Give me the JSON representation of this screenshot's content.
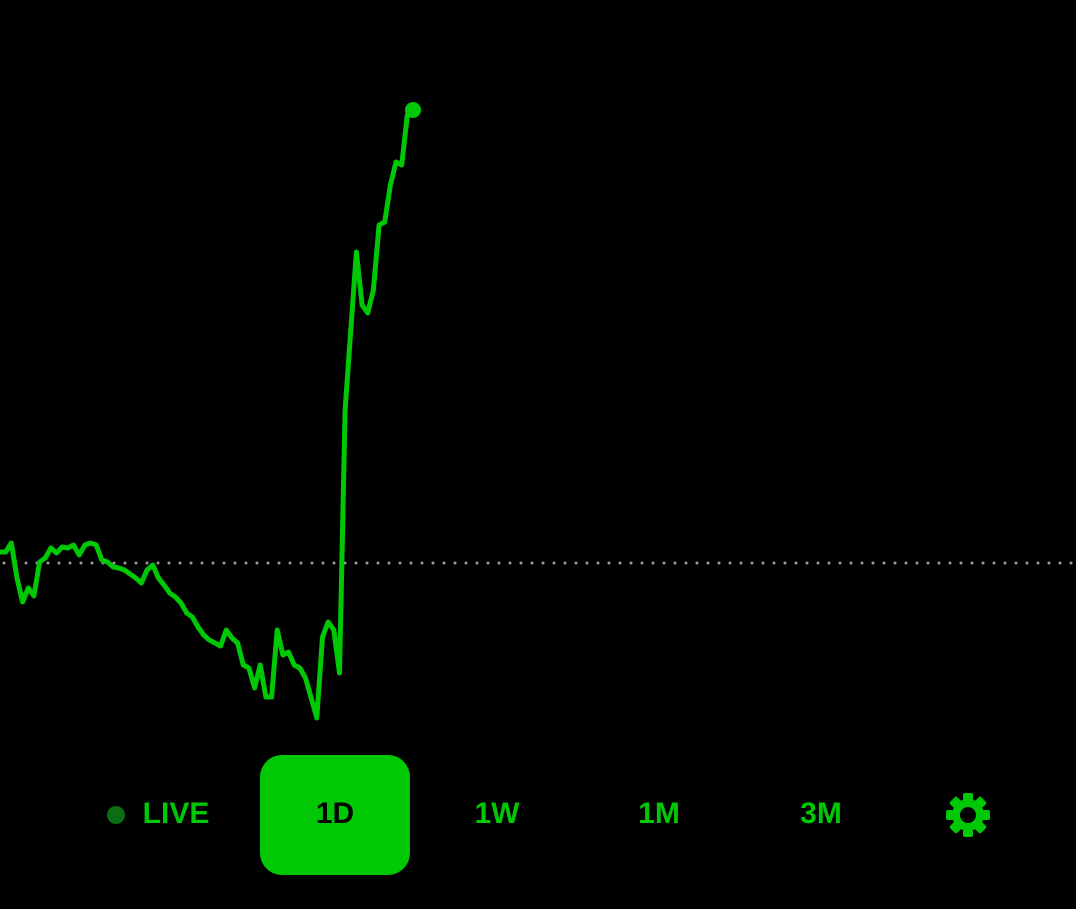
{
  "chart_data": {
    "type": "line",
    "color": "#00c805",
    "reference_line": 100,
    "ylim": [
      80,
      150
    ],
    "values": [
      101.1,
      101.1,
      102.0,
      98.5,
      96.1,
      97.5,
      96.7,
      100.1,
      100.5,
      101.5,
      101.0,
      101.6,
      101.5,
      101.8,
      100.8,
      101.8,
      102.0,
      101.8,
      100.3,
      100.1,
      99.6,
      99.5,
      99.3,
      98.9,
      98.5,
      98.0,
      99.3,
      99.8,
      98.5,
      97.8,
      97.0,
      96.6,
      96.0,
      95.0,
      94.6,
      93.6,
      92.8,
      92.3,
      92.0,
      91.7,
      93.3,
      92.5,
      92.0,
      89.8,
      89.5,
      87.5,
      89.8,
      86.6,
      86.6,
      93.3,
      90.8,
      91.1,
      89.8,
      89.5,
      88.5,
      86.5,
      84.5,
      92.6,
      94.1,
      93.3,
      89.0,
      115.3,
      123.3,
      131.1,
      125.8,
      125.0,
      127.3,
      133.8,
      134.1,
      137.8,
      140.1,
      139.8,
      144.8,
      145.3
    ]
  },
  "controls": {
    "ranges": [
      "LIVE",
      "1D",
      "1W",
      "1M",
      "3M"
    ],
    "selected": 1
  }
}
